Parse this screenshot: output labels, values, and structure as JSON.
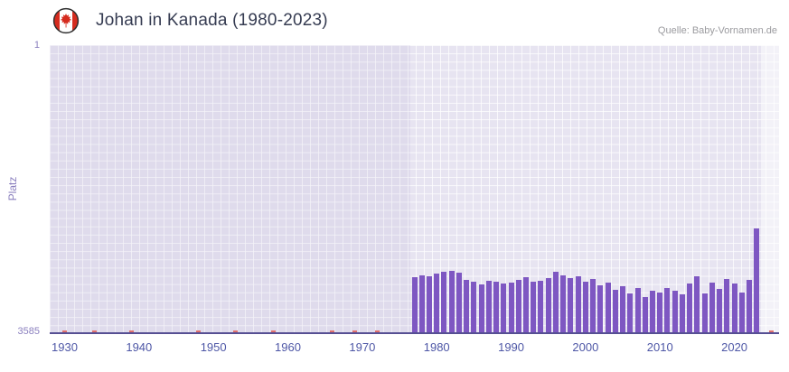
{
  "header": {
    "title": "Johan in Kanada (1980-2023)",
    "source": "Quelle: Baby-Vornamen.de",
    "flag_icon": "canada-flag-icon"
  },
  "chart_data": {
    "type": "bar",
    "title": "Johan in Kanada (1980-2023)",
    "xlabel": "",
    "ylabel": "Platz",
    "y_axis": {
      "top_label": "1",
      "bottom_label": "3585",
      "min": 1,
      "max": 3585,
      "inverted": true
    },
    "x_domain": [
      1928,
      2026
    ],
    "x_ticks": [
      1930,
      1940,
      1950,
      1960,
      1970,
      1980,
      1990,
      2000,
      2010,
      2020
    ],
    "grid": true,
    "legend": "none",
    "points": [
      [
        1977,
        2900
      ],
      [
        1978,
        2880
      ],
      [
        1979,
        2890
      ],
      [
        1980,
        2855
      ],
      [
        1981,
        2835
      ],
      [
        1982,
        2825
      ],
      [
        1983,
        2845
      ],
      [
        1984,
        2930
      ],
      [
        1985,
        2960
      ],
      [
        1986,
        2990
      ],
      [
        1987,
        2950
      ],
      [
        1988,
        2955
      ],
      [
        1989,
        2975
      ],
      [
        1990,
        2965
      ],
      [
        1991,
        2940
      ],
      [
        1992,
        2905
      ],
      [
        1993,
        2960
      ],
      [
        1994,
        2945
      ],
      [
        1995,
        2910
      ],
      [
        1996,
        2835
      ],
      [
        1997,
        2880
      ],
      [
        1998,
        2915
      ],
      [
        1999,
        2895
      ],
      [
        2000,
        2955
      ],
      [
        2001,
        2925
      ],
      [
        2002,
        3000
      ],
      [
        2003,
        2970
      ],
      [
        2004,
        3060
      ],
      [
        2005,
        3015
      ],
      [
        2006,
        3105
      ],
      [
        2007,
        3040
      ],
      [
        2008,
        3150
      ],
      [
        2009,
        3070
      ],
      [
        2010,
        3095
      ],
      [
        2011,
        3035
      ],
      [
        2012,
        3065
      ],
      [
        2013,
        3110
      ],
      [
        2014,
        2975
      ],
      [
        2015,
        2895
      ],
      [
        2016,
        3105
      ],
      [
        2017,
        2965
      ],
      [
        2018,
        3050
      ],
      [
        2019,
        2920
      ],
      [
        2020,
        2980
      ],
      [
        2021,
        3090
      ],
      [
        2022,
        2940
      ],
      [
        2023,
        2300
      ]
    ],
    "no_rank_years": [
      1930,
      1934,
      1939,
      1948,
      1953,
      1958,
      1966,
      1969,
      1972,
      2025
    ],
    "muted_region": {
      "from": 1928,
      "to": 1976.4
    },
    "highlight_region": {
      "from": 2023.6,
      "to": 2026
    },
    "colors": {
      "bar": "#7e57c2",
      "no_rank": "#e0706d",
      "axis_line": "#564f93",
      "plot_bg": "#e7e4f1",
      "tick_label": "#4e57a6",
      "y_label": "#8a7fbe"
    }
  }
}
